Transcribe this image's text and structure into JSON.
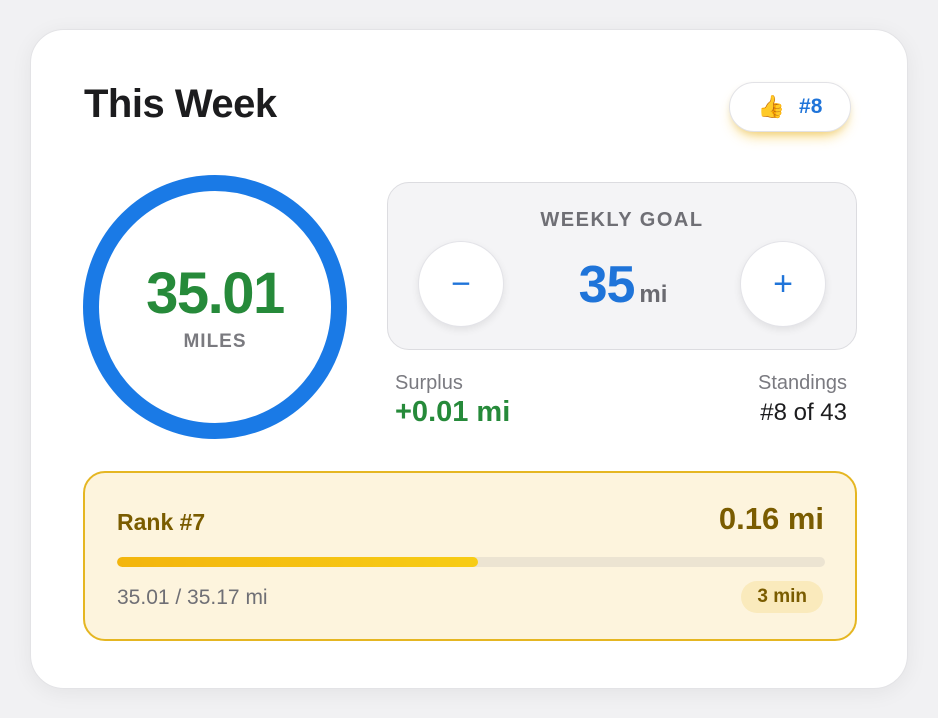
{
  "card": {
    "title": "This Week",
    "rank_badge": {
      "icon": "thumbs-up-icon",
      "icon_glyph": "👍",
      "label": "#8"
    }
  },
  "ring": {
    "value": "35.01",
    "label": "MILES",
    "progress": 1.0,
    "color": "#1a7ae6",
    "value_color": "#268a3a"
  },
  "weekly_goal": {
    "title": "WEEKLY GOAL",
    "value": "35",
    "unit": "mi",
    "decrement_icon": "minus-icon",
    "decrement_glyph": "−",
    "increment_icon": "plus-icon",
    "increment_glyph": "+"
  },
  "surplus": {
    "label": "Surplus",
    "value": "+0.01 mi"
  },
  "standings": {
    "label": "Standings",
    "value": "#8 of 43"
  },
  "next_rank": {
    "label": "Rank #7",
    "distance": "0.16 mi",
    "progress_text": "35.01 / 35.17 mi",
    "progress_fraction": 0.51,
    "time_estimate": "3 min"
  },
  "colors": {
    "accent_blue": "#1f74d9",
    "green": "#268a3a",
    "gold": "#e5b622",
    "gold_text": "#7a5c00"
  }
}
